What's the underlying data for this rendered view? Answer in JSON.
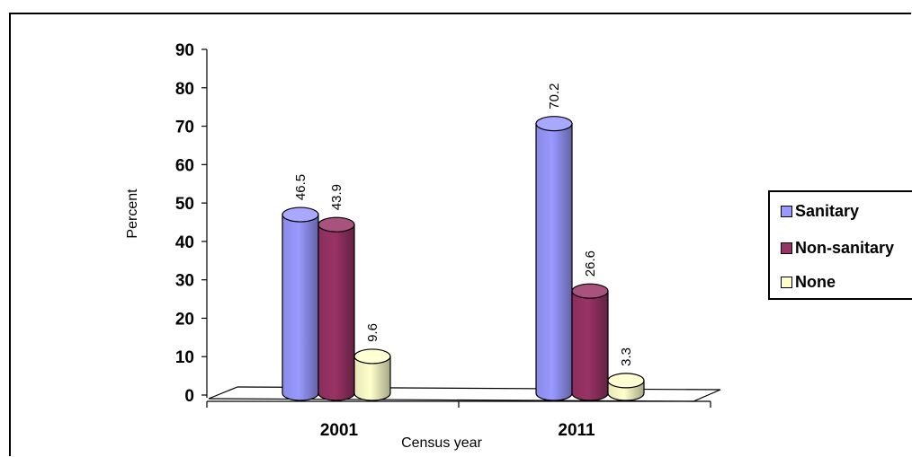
{
  "chart_data": {
    "type": "bar",
    "style": "3d-cylinder",
    "categories": [
      "2001",
      "2011"
    ],
    "series": [
      {
        "name": "Sanitary",
        "color": "#9999ff",
        "values": [
          46.5,
          70.2
        ]
      },
      {
        "name": "Non-sanitary",
        "color": "#993366",
        "values": [
          43.9,
          26.6
        ]
      },
      {
        "name": "None",
        "color": "#ffffcc",
        "values": [
          9.6,
          3.3
        ]
      }
    ],
    "data_labels": [
      [
        "46.5",
        "70.2"
      ],
      [
        "43.9",
        "26.6"
      ],
      [
        "9.6",
        "3.3"
      ]
    ],
    "yticks": [
      "0",
      "10",
      "20",
      "30",
      "40",
      "50",
      "60",
      "70",
      "80",
      "90"
    ],
    "ylim": [
      0,
      90
    ],
    "xlabel": "Census year",
    "ylabel": "Percent",
    "legend_position": "right",
    "grid": false
  }
}
